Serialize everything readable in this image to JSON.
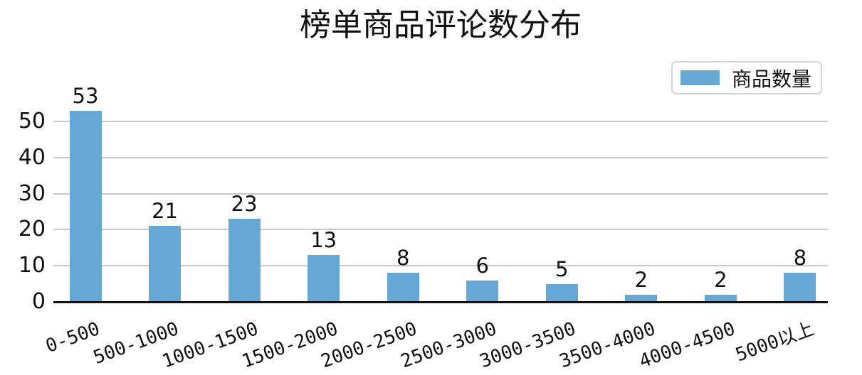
{
  "chart_data": {
    "type": "bar",
    "title": "榜单商品评论数分布",
    "categories": [
      "0-500",
      "500-1000",
      "1000-1500",
      "1500-2000",
      "2000-2500",
      "2500-3000",
      "3000-3500",
      "3500-4000",
      "4000-4500",
      "5000以上"
    ],
    "series": [
      {
        "name": "商品数量",
        "values": [
          53,
          21,
          23,
          13,
          8,
          6,
          5,
          2,
          2,
          8
        ]
      }
    ],
    "bar_labels": [
      "53",
      "21",
      "23",
      "13",
      "8",
      "6",
      "5",
      "2",
      "2",
      "8"
    ],
    "xlabel": "",
    "ylabel": "",
    "ylim": [
      0,
      55
    ],
    "yticks": [
      0,
      10,
      20,
      30,
      40,
      50
    ],
    "grid": true,
    "legend_position": "upper-right",
    "xtick_rotation_deg": 20,
    "colors": {
      "bar": "#65a8d5",
      "grid": "#c9c9c9",
      "axis": "#111111",
      "text": "#111111",
      "legend_border": "#d4d4d4"
    }
  }
}
